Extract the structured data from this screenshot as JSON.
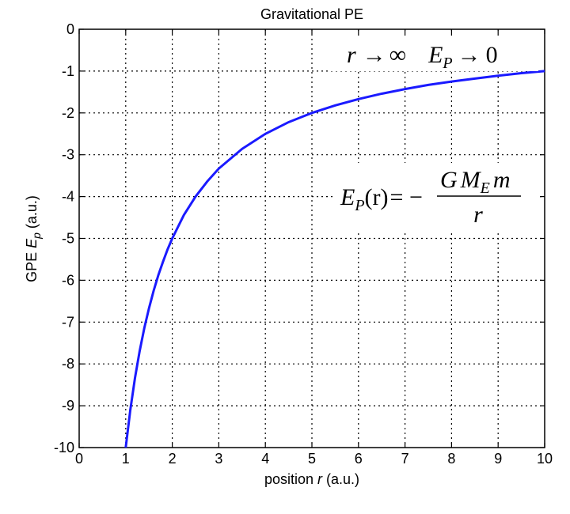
{
  "chart_data": {
    "type": "line",
    "title": "Gravitational PE",
    "xlabel": {
      "prefix": "position ",
      "var": "r",
      "suffix": " (a.u.)"
    },
    "ylabel": {
      "prefix": "GPE ",
      "var": "E",
      "sub": "p",
      "suffix": " (a.u.)"
    },
    "xlim": [
      0,
      10
    ],
    "ylim": [
      -10,
      0
    ],
    "xticks": [
      "0",
      "1",
      "2",
      "3",
      "4",
      "5",
      "6",
      "7",
      "8",
      "9",
      "10"
    ],
    "yticks": [
      "0",
      "-1",
      "-2",
      "-3",
      "-4",
      "-5",
      "-6",
      "-7",
      "-8",
      "-9",
      "-10"
    ],
    "grid": true,
    "grid_style": "dotted",
    "series": [
      {
        "function": "-10/r",
        "color": "#1a1aff",
        "x": [
          1.0,
          1.1,
          1.2,
          1.3,
          1.4,
          1.5,
          1.6,
          1.7,
          1.8,
          1.9,
          2.0,
          2.25,
          2.5,
          2.75,
          3.0,
          3.5,
          4.0,
          4.5,
          5.0,
          5.5,
          6.0,
          6.5,
          7.0,
          7.5,
          8.0,
          8.5,
          9.0,
          9.5,
          10.0
        ],
        "y": [
          -10.0,
          -9.09,
          -8.33,
          -7.69,
          -7.14,
          -6.67,
          -6.25,
          -5.88,
          -5.56,
          -5.26,
          -5.0,
          -4.44,
          -4.0,
          -3.64,
          -3.33,
          -2.86,
          -2.5,
          -2.22,
          -2.0,
          -1.82,
          -1.67,
          -1.54,
          -1.43,
          -1.33,
          -1.25,
          -1.18,
          -1.11,
          -1.05,
          -1.0
        ]
      }
    ],
    "annotations": {
      "limit": {
        "r": "r",
        "arrow1": "→",
        "inf": "∞",
        "E": "E",
        "sub": "P",
        "arrow2": "→",
        "zero": "0"
      },
      "formula": {
        "E": "E",
        "sub": "P",
        "arg": "(r)",
        "eq": "= −",
        "G": "G",
        "M": "M",
        "msub": "E",
        "m": "m",
        "den": "r"
      }
    }
  }
}
